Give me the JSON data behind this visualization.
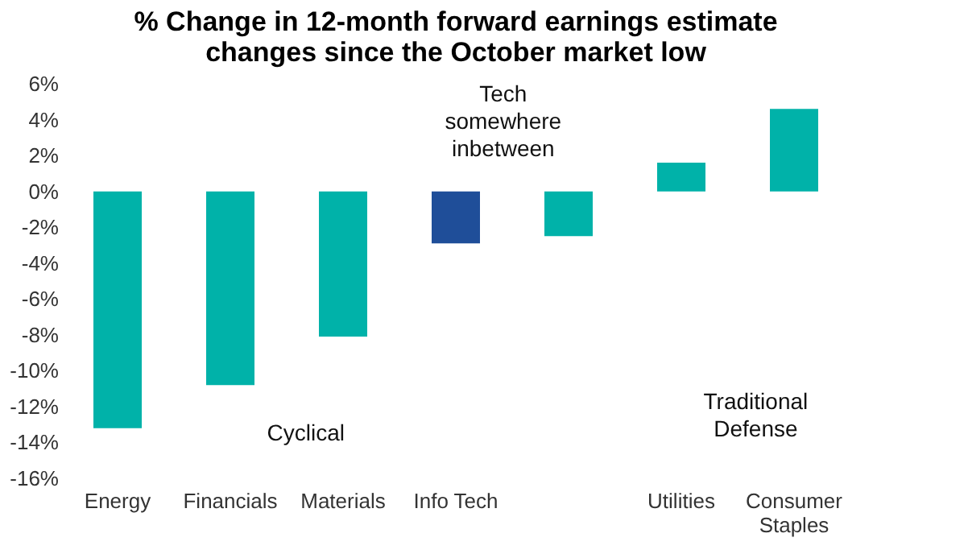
{
  "chart_data": {
    "type": "bar",
    "title": "% Change in 12-month forward earnings estimate changes since the October market low",
    "categories": [
      "Energy",
      "Financials",
      "Materials",
      "Info Tech",
      null,
      "Utilities",
      "Consumer Staples"
    ],
    "values": [
      -13.2,
      -10.8,
      -8.1,
      -2.9,
      -2.5,
      1.6,
      4.6
    ],
    "colors": [
      "#00b2a9",
      "#00b2a9",
      "#00b2a9",
      "#1f4e99",
      "#00b2a9",
      "#00b2a9",
      "#00b2a9"
    ],
    "ylim": [
      -16,
      6
    ],
    "yticks": [
      {
        "value": -16,
        "label": "-16%"
      },
      {
        "value": -14,
        "label": "-14%"
      },
      {
        "value": -12,
        "label": "-12%"
      },
      {
        "value": -10,
        "label": "-10%"
      },
      {
        "value": -8,
        "label": "-8%"
      },
      {
        "value": -6,
        "label": "-6%"
      },
      {
        "value": -4,
        "label": "-4%"
      },
      {
        "value": -2,
        "label": "-2%"
      },
      {
        "value": 0,
        "label": "0%"
      },
      {
        "value": 2,
        "label": "2%"
      },
      {
        "value": 4,
        "label": "4%"
      },
      {
        "value": 6,
        "label": "6%"
      }
    ],
    "annotations": [
      "Cyclical",
      "Tech\nsomewhere\ninbetween",
      "Traditional\nDefense"
    ],
    "grid": false
  }
}
